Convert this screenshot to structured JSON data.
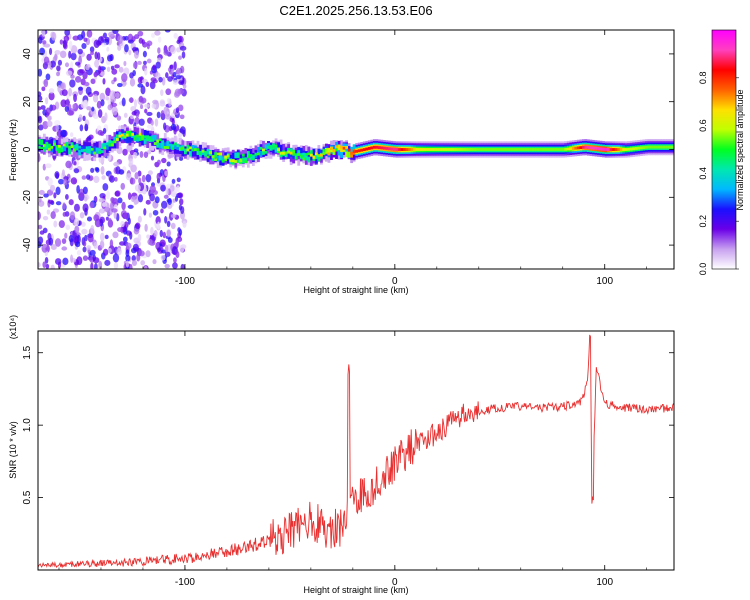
{
  "title": "C2E1.2025.256.13.53.E06",
  "chart_data": [
    {
      "type": "heatmap",
      "title": "C2E1.2025.256.13.53.E06",
      "xlabel": "Height of straight line (km)",
      "ylabel": "Frequency (Hz)",
      "xlim": [
        -170,
        133
      ],
      "ylim": [
        -50,
        50
      ],
      "xticks": [
        -100,
        0,
        100
      ],
      "xtick_labels": [
        "-100",
        "0",
        "100"
      ],
      "yticks": [
        -40,
        -20,
        0,
        20,
        40
      ],
      "ytick_labels": [
        "-40",
        "-20",
        "0",
        "20",
        "40"
      ],
      "colorbar": {
        "label": "Normalized spectral amplitude",
        "range": [
          0.0,
          1.0
        ],
        "ticks": [
          0.0,
          0.2,
          0.4,
          0.6,
          0.8
        ],
        "tick_labels": [
          "0.0",
          "0.2",
          "0.4",
          "0.6",
          "0.8"
        ],
        "colormap": [
          "#ffffff",
          "#c8a0f0",
          "#6a00e8",
          "#1a10ff",
          "#00b8ff",
          "#00e8b0",
          "#00ff20",
          "#c0ff00",
          "#ffe000",
          "#ff6000",
          "#ff0000",
          "#ff40c0",
          "#ff00ff"
        ]
      },
      "ridge": {
        "name": "Doppler frequency trace",
        "x": [
          -170,
          -160,
          -150,
          -140,
          -130,
          -120,
          -110,
          -100,
          -90,
          -80,
          -70,
          -60,
          -50,
          -40,
          -35,
          -30,
          -20,
          -10,
          0,
          10,
          20,
          40,
          60,
          80,
          90,
          100,
          110,
          120,
          133
        ],
        "frequency": [
          2,
          1,
          0,
          0,
          6,
          5,
          2,
          0,
          -2,
          -4,
          -3,
          1,
          -2,
          -3,
          -2,
          0,
          -1,
          1,
          0,
          0,
          0,
          0,
          0,
          0,
          1,
          0,
          0,
          1,
          1
        ],
        "amplitude": [
          0.5,
          0.5,
          0.45,
          0.45,
          0.6,
          0.55,
          0.45,
          0.5,
          0.5,
          0.55,
          0.5,
          0.5,
          0.6,
          0.55,
          0.6,
          0.7,
          0.8,
          0.85,
          0.9,
          0.65,
          0.6,
          0.55,
          0.55,
          0.55,
          0.9,
          0.95,
          0.6,
          0.55,
          0.55
        ]
      },
      "scatter_region": {
        "name": "Noise scatter",
        "x_range": [
          -170,
          -100
        ],
        "frequency_range": [
          -50,
          50
        ],
        "amplitude_range": [
          0.02,
          0.25
        ]
      }
    },
    {
      "type": "line",
      "series": [
        {
          "name": "SNR",
          "color": "#e83030",
          "x": [
            -170,
            -150,
            -130,
            -120,
            -100,
            -90,
            -80,
            -70,
            -60,
            -55,
            -50,
            -45,
            -40,
            -35,
            -30,
            -25,
            -22,
            -20,
            -15,
            -10,
            -5,
            0,
            5,
            10,
            15,
            20,
            25,
            30,
            40,
            50,
            60,
            70,
            80,
            88,
            90,
            92,
            93,
            94,
            96,
            100,
            110,
            120,
            133
          ],
          "values": [
            0.03,
            0.04,
            0.05,
            0.06,
            0.08,
            0.1,
            0.13,
            0.16,
            0.2,
            0.24,
            0.28,
            0.32,
            0.35,
            0.3,
            0.28,
            0.3,
            0.45,
            0.5,
            0.52,
            0.58,
            0.66,
            0.75,
            0.82,
            0.86,
            0.9,
            0.95,
            1.0,
            1.06,
            1.1,
            1.12,
            1.13,
            1.12,
            1.13,
            1.15,
            1.2,
            1.35,
            1.62,
            0.48,
            1.4,
            1.15,
            1.12,
            1.11,
            1.12
          ]
        }
      ],
      "xlabel": "Height of straight line (km)",
      "ylabel": "SNR (10 * v/v)",
      "y_multiplier_label": "(x10⁴)",
      "xlim": [
        -170,
        133
      ],
      "ylim": [
        0,
        1.65
      ],
      "xticks": [
        -100,
        0,
        100
      ],
      "xtick_labels": [
        "-100",
        "0",
        "100"
      ],
      "yticks": [
        0.5,
        1.0,
        1.5
      ],
      "ytick_labels": [
        "0.5",
        "1.0",
        "1.5"
      ]
    }
  ]
}
